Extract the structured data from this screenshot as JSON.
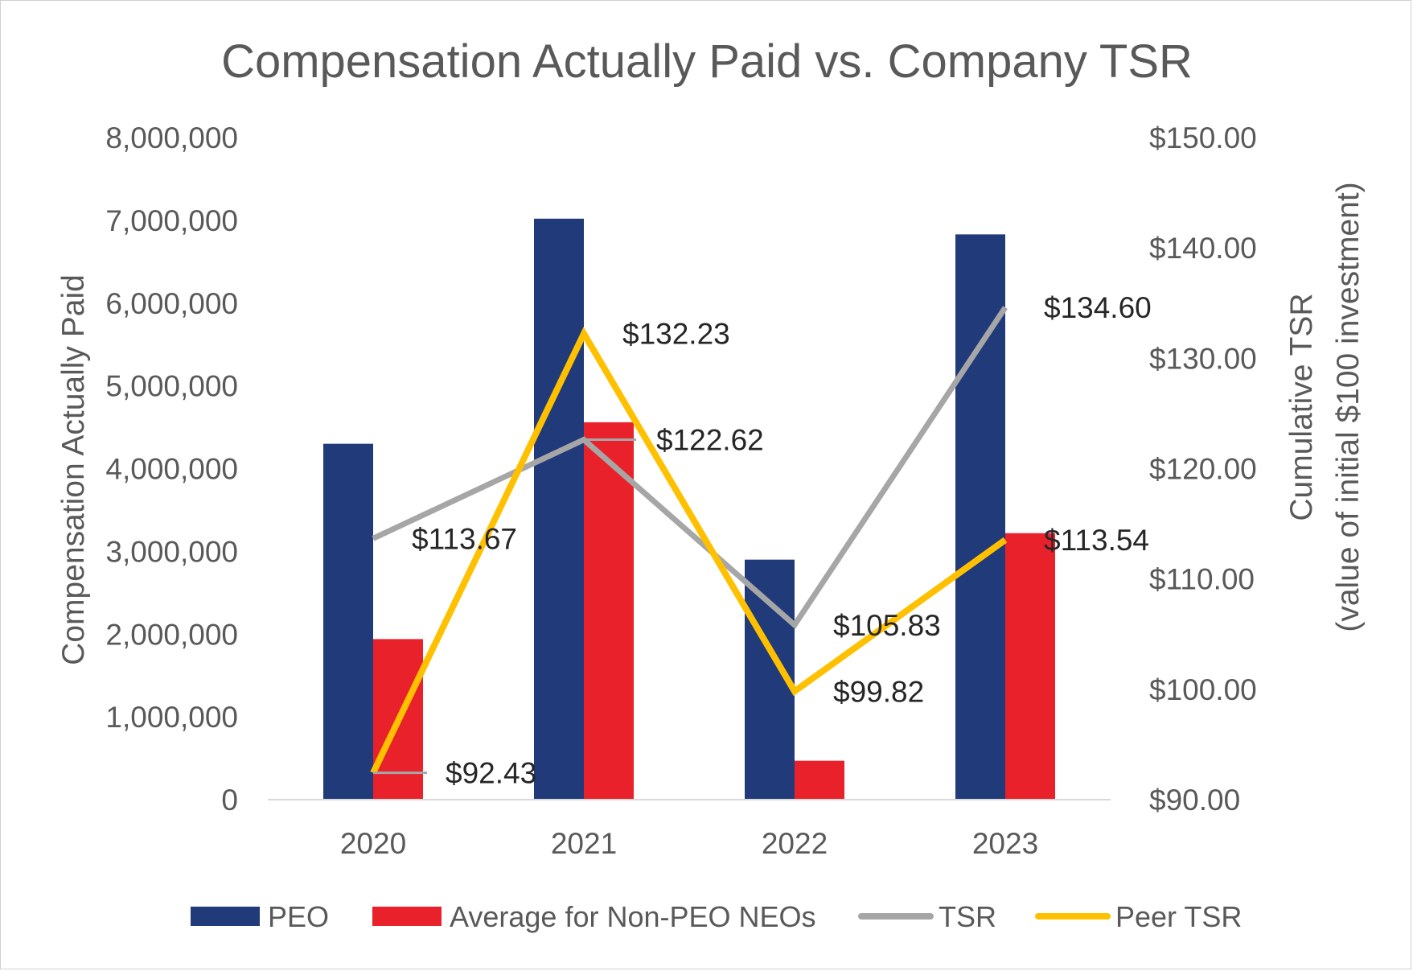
{
  "chart_data": {
    "type": "bar+line",
    "title": "Compensation Actually Paid vs. Company TSR",
    "categories": [
      "2020",
      "2021",
      "2022",
      "2023"
    ],
    "y_left": {
      "label": "Compensation Actually Paid",
      "range": [
        0,
        8000000
      ],
      "ticks": [
        "0",
        "1,000,000",
        "2,000,000",
        "3,000,000",
        "4,000,000",
        "5,000,000",
        "6,000,000",
        "7,000,000",
        "8,000,000"
      ]
    },
    "y_right": {
      "label_line1": "Cumulative TSR",
      "label_line2": "(value of initial $100 investment)",
      "range": [
        90,
        150
      ],
      "ticks": [
        "$90.00",
        "$100.00",
        "$110.00",
        "$120.00",
        "$130.00",
        "$140.00",
        "$150.00"
      ]
    },
    "bar_series": [
      {
        "name": "PEO",
        "color": "#203a7a",
        "values": [
          4300000,
          7020000,
          2900000,
          6830000
        ]
      },
      {
        "name": "Average for Non-PEO NEOs",
        "color": "#e8212b",
        "values": [
          1940000,
          4560000,
          470000,
          3220000
        ]
      }
    ],
    "line_series": [
      {
        "name": "TSR",
        "color": "#a6a6a6",
        "values": [
          113.67,
          122.62,
          105.83,
          134.6
        ],
        "labels": [
          "$113.67",
          "$122.62",
          "$105.83",
          "$134.60"
        ]
      },
      {
        "name": "Peer TSR",
        "color": "#ffc000",
        "values": [
          92.43,
          132.23,
          99.82,
          113.54
        ],
        "labels": [
          "$92.43",
          "$132.23",
          "$99.82",
          "$113.54"
        ]
      }
    ],
    "legend_position": "bottom",
    "grid": false
  }
}
